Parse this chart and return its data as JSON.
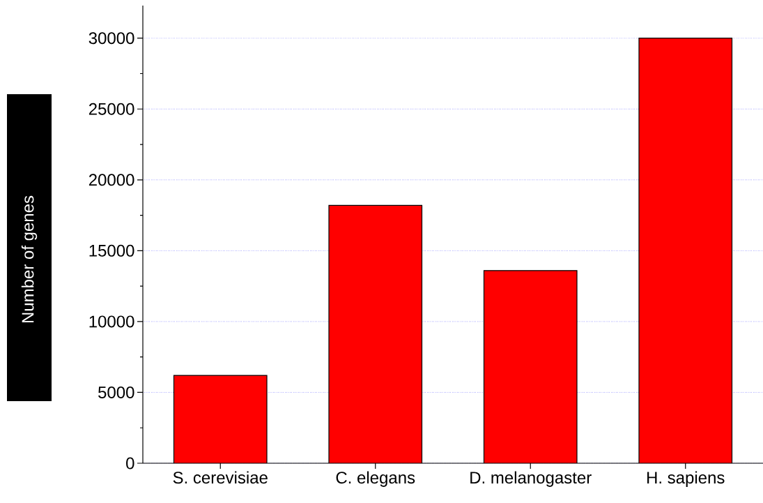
{
  "chart_data": {
    "type": "bar",
    "ylabel": "Number of genes",
    "categories": [
      "S. cerevisiae",
      "C. elegans",
      "D. melanogaster",
      "H. sapiens"
    ],
    "values": [
      6200,
      18200,
      13600,
      30000
    ],
    "color": "#ff0000",
    "ylim": [
      0,
      32300
    ],
    "yticks": [
      0,
      5000,
      10000,
      15000,
      20000,
      25000,
      30000
    ],
    "grid": "y"
  }
}
